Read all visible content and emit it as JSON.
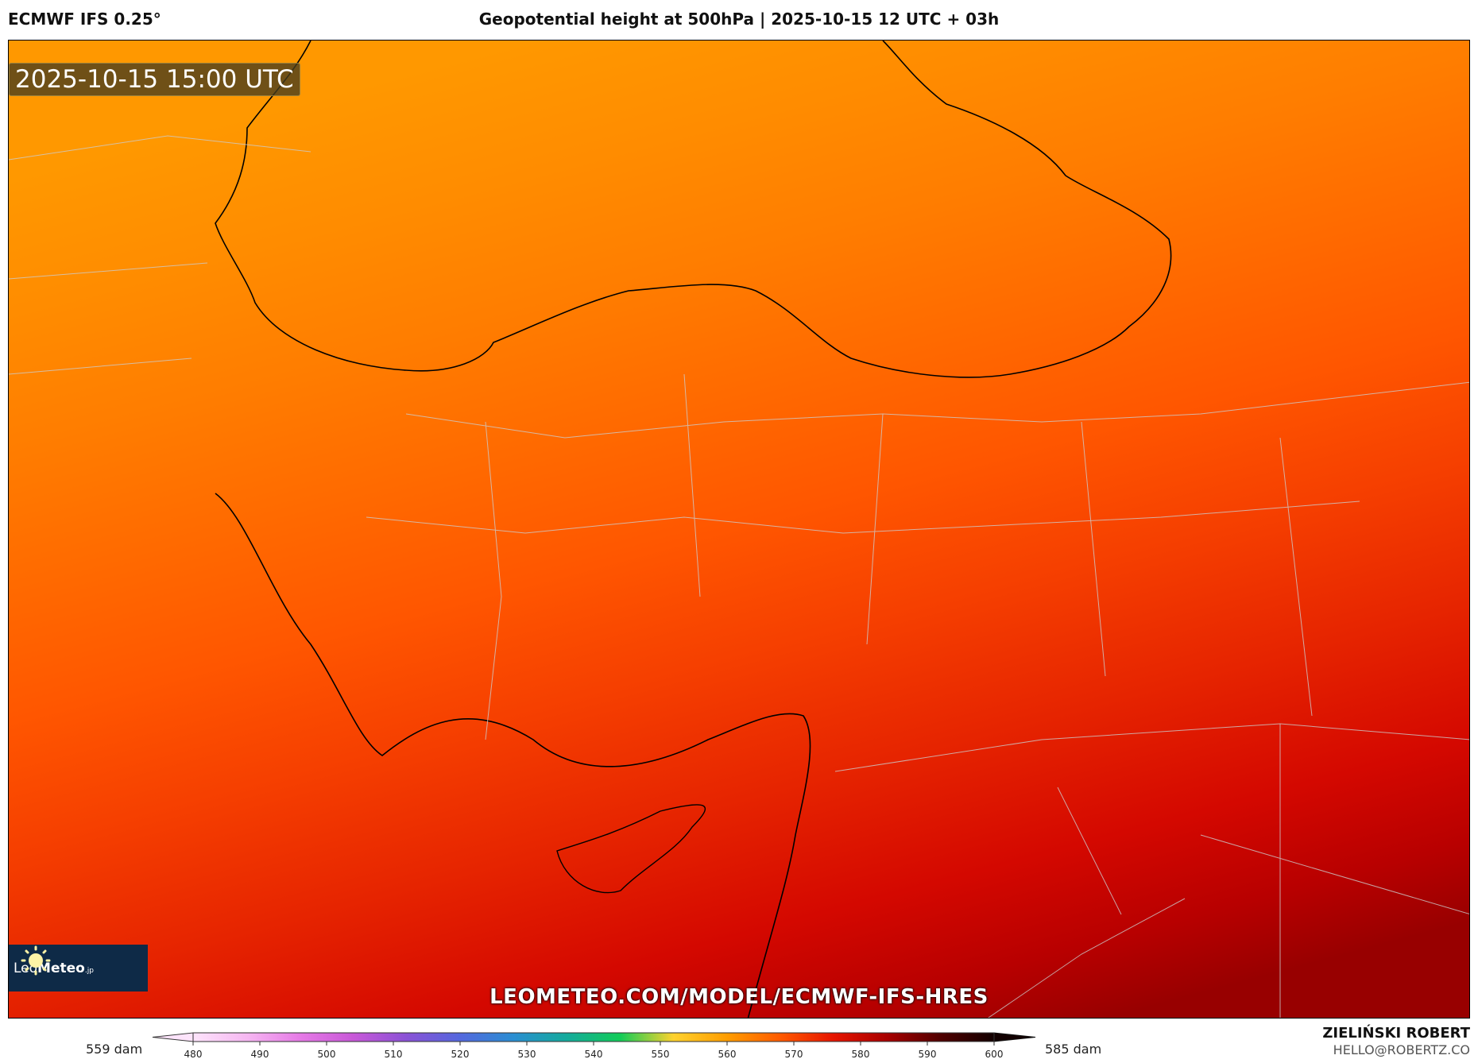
{
  "header": {
    "model": "ECMWF IFS 0.25°",
    "title": "Geopotential height at 500hPa | 2025-10-15 12 UTC + 03h"
  },
  "map": {
    "valid_time": "2025-10-15 15:00 UTC",
    "logo_text_light": "Leo",
    "logo_text_bold": "Meteo",
    "logo_suffix": ".jp",
    "watermark_url": "LEOMETEO.COM/MODEL/ECMWF-IFS-HRES",
    "field_range": {
      "min": 559,
      "max": 585,
      "unit": "dam"
    }
  },
  "legend": {
    "min_label": "559 dam",
    "max_label": "585 dam",
    "ticks": [
      "480",
      "490",
      "500",
      "510",
      "520",
      "530",
      "540",
      "550",
      "560",
      "570",
      "580",
      "590",
      "600"
    ],
    "colors": [
      "#fde4fb",
      "#f6b8f2",
      "#e67ae6",
      "#c858d8",
      "#8a52d6",
      "#5468de",
      "#2a8ed2",
      "#14ab9c",
      "#12cc58",
      "#ffd22e",
      "#ff9d00",
      "#ff5a00",
      "#e61400",
      "#a80000",
      "#500000",
      "#120000"
    ]
  },
  "credits": {
    "author": "ZIELIŃSKI ROBERT",
    "email": "HELLO@ROBERTZ.CO"
  }
}
